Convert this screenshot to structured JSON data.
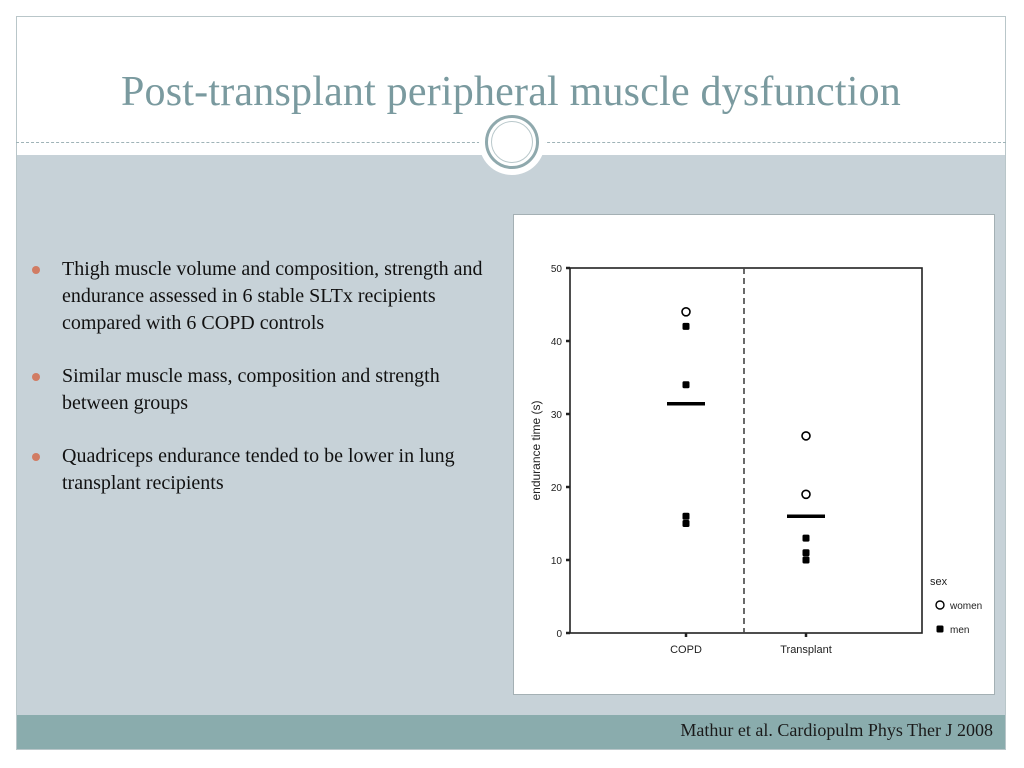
{
  "slide": {
    "title": "Post-transplant peripheral muscle dysfunction",
    "bullets": [
      "Thigh muscle volume and composition, strength and endurance assessed in 6 stable SLTx recipients compared with 6 COPD controls",
      "Similar muscle mass, composition  and strength between groups",
      "Quadriceps endurance tended to be lower in lung transplant recipients"
    ],
    "citation": "Mathur et al. Cardiopulm Phys Ther J 2008"
  },
  "colors": {
    "title": "#7a9a9f",
    "content_band": "#c7d2d8",
    "footer_band": "#8aacad",
    "bullet": "#d17c63"
  },
  "chart_data": {
    "type": "scatter",
    "title": "",
    "xlabel": "",
    "ylabel": "endurance time (s)",
    "categories": [
      "COPD",
      "Transplant"
    ],
    "ylim": [
      0,
      50
    ],
    "yticks": [
      0,
      10,
      20,
      30,
      40,
      50
    ],
    "grid": false,
    "legend": {
      "title": "sex",
      "position": "bottom-right",
      "entries": [
        {
          "label": "women",
          "marker": "open-circle"
        },
        {
          "label": "men",
          "marker": "filled-square"
        }
      ]
    },
    "series": [
      {
        "name": "women",
        "marker": "open-circle",
        "points": [
          {
            "category": "COPD",
            "y": 44
          },
          {
            "category": "Transplant",
            "y": 27
          },
          {
            "category": "Transplant",
            "y": 19
          }
        ]
      },
      {
        "name": "men",
        "marker": "filled-square",
        "points": [
          {
            "category": "COPD",
            "y": 42
          },
          {
            "category": "COPD",
            "y": 34
          },
          {
            "category": "COPD",
            "y": 16
          },
          {
            "category": "COPD",
            "y": 15
          },
          {
            "category": "Transplant",
            "y": 13
          },
          {
            "category": "Transplant",
            "y": 11
          },
          {
            "category": "Transplant",
            "y": 10
          }
        ]
      }
    ],
    "means": [
      {
        "category": "COPD",
        "y": 31.4
      },
      {
        "category": "Transplant",
        "y": 16
      }
    ],
    "divider": "dashed vertical line between groups"
  }
}
